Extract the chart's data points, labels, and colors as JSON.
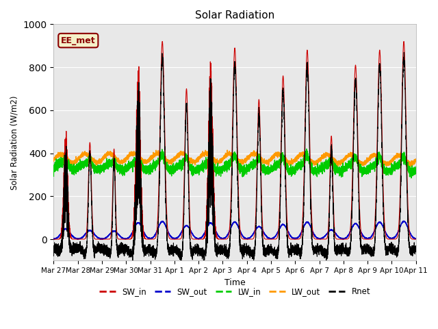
{
  "title": "Solar Radiation",
  "ylabel": "Solar Radiation (W/m2)",
  "xlabel": "Time",
  "ylim": [
    -100,
    1000
  ],
  "background_color": "#e8e8e8",
  "annotation_text": "EE_met",
  "annotation_bg": "#f5f0c8",
  "annotation_border": "#8b0000",
  "series_colors": {
    "SW_in": "#cc0000",
    "SW_out": "#0000cc",
    "LW_in": "#00cc00",
    "LW_out": "#ff9900",
    "Rnet": "#000000"
  },
  "tick_labels": [
    "Mar 27",
    "Mar 28",
    "Mar 29",
    "Mar 30",
    "Mar 31",
    "Apr 1",
    "Apr 2",
    "Apr 3",
    "Apr 4",
    "Apr 5",
    "Apr 6",
    "Apr 7",
    "Apr 8",
    "Apr 9",
    "Apr 10",
    "Apr 11"
  ],
  "n_days": 15,
  "pts_per_day": 480,
  "sw_in_peaks": [
    530,
    450,
    420,
    850,
    920,
    700,
    840,
    890,
    650,
    760,
    880,
    480,
    810,
    880,
    920
  ],
  "sw_in_widths": [
    0.08,
    0.06,
    0.05,
    0.09,
    0.09,
    0.07,
    0.09,
    0.09,
    0.07,
    0.08,
    0.09,
    0.06,
    0.09,
    0.09,
    0.09
  ]
}
